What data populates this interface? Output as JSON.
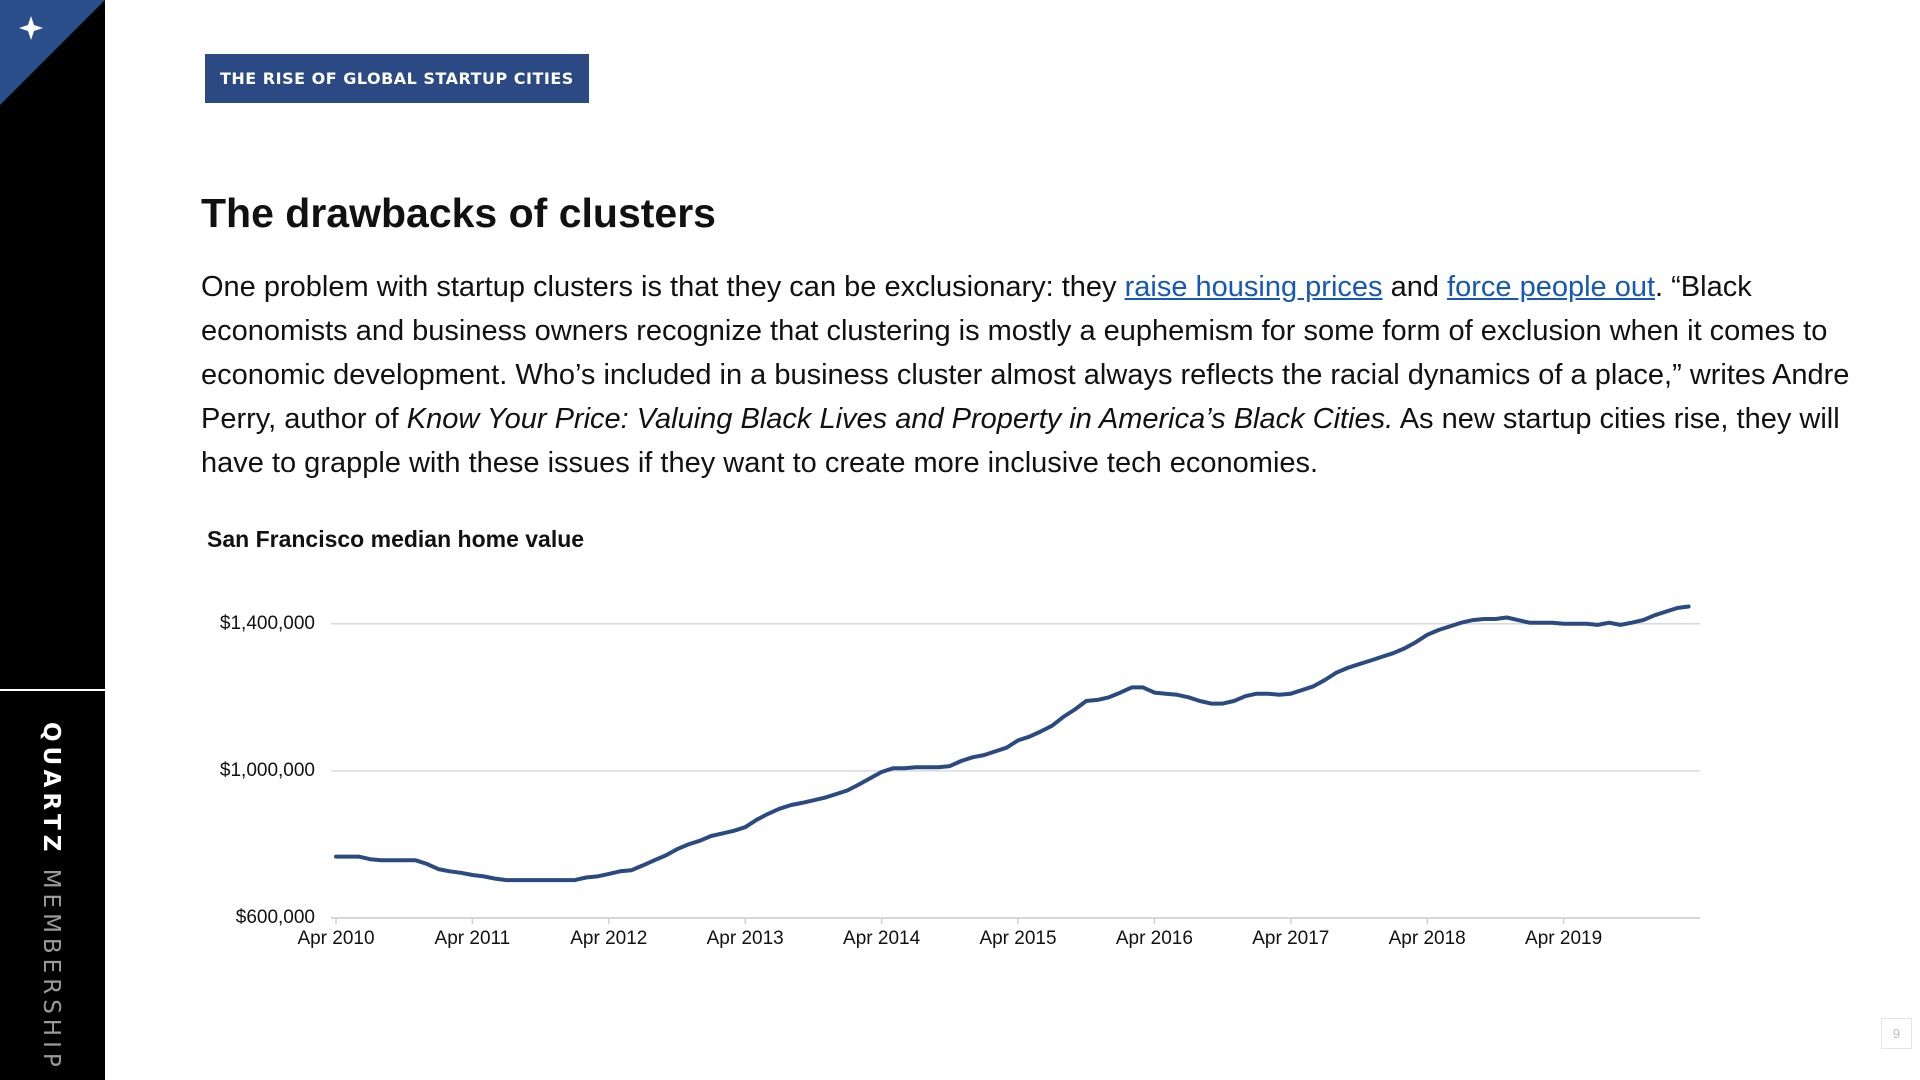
{
  "sidebar": {
    "brand": "QUARTZ",
    "label": "MEMBERSHIP"
  },
  "tag": "THE RISE OF GLOBAL STARTUP CITIES",
  "heading": "The drawbacks of clusters",
  "paragraph": [
    {
      "text": "One problem with startup clusters is that they can be exclusionary: they ",
      "style": "plain"
    },
    {
      "text": "raise housing prices",
      "style": "link"
    },
    {
      "text": " and ",
      "style": "plain"
    },
    {
      "text": "force people out",
      "style": "link"
    },
    {
      "text": ". “Black economists and business owners recognize that clustering is mostly a euphemism for some form of exclusion when it comes to economic development. Who’s included in a business cluster almost always reflects the racial dynamics of a place,” writes Andre Perry, author of ",
      "style": "plain"
    },
    {
      "text": "Know Your Price: Valuing Black Lives and Property in America’s Black Cities.",
      "style": "italic"
    },
    {
      "text": " As new startup cities rise, they will have to grapple with these issues if they want to create more inclusive tech economies.",
      "style": "plain"
    }
  ],
  "page_number": "9",
  "chart_data": {
    "type": "line",
    "title": "San Francisco median home value",
    "color": "#2b4a80",
    "grid": true,
    "categories": [
      "Apr 2010",
      null,
      null,
      null,
      null,
      null,
      null,
      null,
      null,
      null,
      null,
      null,
      "Apr 2011",
      null,
      null,
      null,
      null,
      null,
      null,
      null,
      null,
      null,
      null,
      null,
      "Apr 2012",
      null,
      null,
      null,
      null,
      null,
      null,
      null,
      null,
      null,
      null,
      null,
      "Apr 2013",
      null,
      null,
      null,
      null,
      null,
      null,
      null,
      null,
      null,
      null,
      null,
      "Apr 2014",
      null,
      null,
      null,
      null,
      null,
      null,
      null,
      null,
      null,
      null,
      null,
      "Apr 2015",
      null,
      null,
      null,
      null,
      null,
      null,
      null,
      null,
      null,
      null,
      null,
      "Apr 2016",
      null,
      null,
      null,
      null,
      null,
      null,
      null,
      null,
      null,
      null,
      null,
      "Apr 2017",
      null,
      null,
      null,
      null,
      null,
      null,
      null,
      null,
      null,
      null,
      null,
      "Apr 2018",
      null,
      null,
      null,
      null,
      null,
      null,
      null,
      null,
      null,
      null,
      null,
      "Apr 2019",
      null,
      null,
      null,
      null,
      null,
      null,
      null,
      null,
      null,
      null,
      null
    ],
    "values": [
      767000,
      767000,
      767000,
      760000,
      757000,
      757000,
      757000,
      757000,
      747000,
      733000,
      727000,
      723000,
      717000,
      713000,
      707000,
      703000,
      703000,
      703000,
      703000,
      703000,
      703000,
      703000,
      710000,
      713000,
      720000,
      727000,
      730000,
      743000,
      757000,
      770000,
      787000,
      800000,
      810000,
      823000,
      830000,
      837000,
      847000,
      867000,
      883000,
      897000,
      907000,
      913000,
      920000,
      927000,
      937000,
      947000,
      963000,
      980000,
      997000,
      1007000,
      1007000,
      1010000,
      1010000,
      1010000,
      1013000,
      1027000,
      1037000,
      1043000,
      1053000,
      1063000,
      1083000,
      1093000,
      1107000,
      1123000,
      1147000,
      1167000,
      1190000,
      1193000,
      1200000,
      1213000,
      1227000,
      1227000,
      1213000,
      1210000,
      1207000,
      1200000,
      1190000,
      1183000,
      1183000,
      1190000,
      1203000,
      1210000,
      1210000,
      1207000,
      1210000,
      1220000,
      1230000,
      1247000,
      1267000,
      1280000,
      1290000,
      1300000,
      1310000,
      1320000,
      1333000,
      1350000,
      1370000,
      1383000,
      1393000,
      1403000,
      1410000,
      1413000,
      1413000,
      1417000,
      1410000,
      1403000,
      1403000,
      1403000,
      1400000,
      1400000,
      1400000,
      1397000,
      1403000,
      1397000,
      1403000,
      1410000,
      1423000,
      1433000,
      1443000,
      1447000
    ],
    "ylim": [
      600000,
      1500000
    ],
    "yticks": [
      {
        "value": 600000,
        "label": "$600,000"
      },
      {
        "value": 1000000,
        "label": "$1,000,000"
      },
      {
        "value": 1400000,
        "label": "$1,400,000"
      }
    ]
  }
}
